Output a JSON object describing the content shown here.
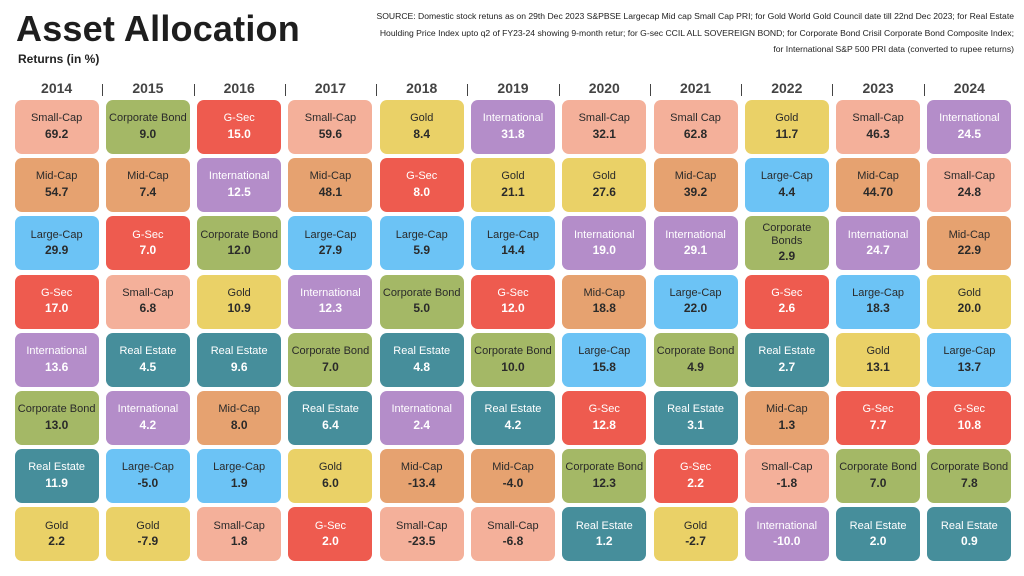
{
  "title": "Asset Allocation",
  "subtitle": "Returns (in %)",
  "source": "SOURCE: Domestic stock retuns as on 29th Dec 2023 S&PBSE Largecap Mid cap Small Cap PRI; for Gold World Gold Council date till 22nd Dec 2023; for Real Estate Houlding Price Index upto q2 of FY23-24 showing 9-month retur; for G-sec CCIL ALL SOVEREIGN BOND; for Corporate Bond Crisil Corporate Bond Composite Index; for International S&P 500 PRI data (converted to rupee returns)",
  "colors": {
    "Small-Cap": "#f4b09a",
    "Mid-Cap": "#e6a270",
    "Large-Cap": "#6cc3f5",
    "G-Sec": "#ee5b4f",
    "Gold": "#ead167",
    "International": "#b48dc9",
    "Corporate Bond": "#a4b866",
    "Real Estate": "#468e9b"
  },
  "chart_data": {
    "type": "table",
    "title": "Asset Allocation",
    "subtitle": "Returns (in %)",
    "columns": [
      {
        "year": "2014",
        "cells": [
          {
            "asset": "Small-Cap",
            "label": "Small-Cap",
            "value": "69.2"
          },
          {
            "asset": "Mid-Cap",
            "label": "Mid-Cap",
            "value": "54.7"
          },
          {
            "asset": "Large-Cap",
            "label": "Large-Cap",
            "value": "29.9"
          },
          {
            "asset": "G-Sec",
            "label": "G-Sec",
            "value": "17.0"
          },
          {
            "asset": "International",
            "label": "International",
            "value": "13.6"
          },
          {
            "asset": "Corporate Bond",
            "label": "Corporate Bond",
            "value": "13.0"
          },
          {
            "asset": "Real Estate",
            "label": "Real Estate",
            "value": "11.9"
          },
          {
            "asset": "Gold",
            "label": "Gold",
            "value": "2.2"
          }
        ]
      },
      {
        "year": "2015",
        "cells": [
          {
            "asset": "Corporate Bond",
            "label": "Corporate Bond",
            "value": "9.0"
          },
          {
            "asset": "Mid-Cap",
            "label": "Mid-Cap",
            "value": "7.4"
          },
          {
            "asset": "G-Sec",
            "label": "G-Sec",
            "value": "7.0"
          },
          {
            "asset": "Small-Cap",
            "label": "Small-Cap",
            "value": "6.8"
          },
          {
            "asset": "Real Estate",
            "label": "Real Estate",
            "value": "4.5"
          },
          {
            "asset": "International",
            "label": "International",
            "value": "4.2"
          },
          {
            "asset": "Large-Cap",
            "label": "Large-Cap",
            "value": "-5.0"
          },
          {
            "asset": "Gold",
            "label": "Gold",
            "value": "-7.9"
          }
        ]
      },
      {
        "year": "2016",
        "cells": [
          {
            "asset": "G-Sec",
            "label": "G-Sec",
            "value": "15.0"
          },
          {
            "asset": "International",
            "label": "International",
            "value": "12.5"
          },
          {
            "asset": "Corporate Bond",
            "label": "Corporate Bond",
            "value": "12.0"
          },
          {
            "asset": "Gold",
            "label": "Gold",
            "value": "10.9"
          },
          {
            "asset": "Real Estate",
            "label": "Real Estate",
            "value": "9.6"
          },
          {
            "asset": "Mid-Cap",
            "label": "Mid-Cap",
            "value": "8.0"
          },
          {
            "asset": "Large-Cap",
            "label": "Large-Cap",
            "value": "1.9"
          },
          {
            "asset": "Small-Cap",
            "label": "Small-Cap",
            "value": "1.8"
          }
        ]
      },
      {
        "year": "2017",
        "cells": [
          {
            "asset": "Small-Cap",
            "label": "Small-Cap",
            "value": "59.6"
          },
          {
            "asset": "Mid-Cap",
            "label": "Mid-Cap",
            "value": "48.1"
          },
          {
            "asset": "Large-Cap",
            "label": "Large-Cap",
            "value": "27.9"
          },
          {
            "asset": "International",
            "label": "International",
            "value": "12.3"
          },
          {
            "asset": "Corporate Bond",
            "label": "Corporate Bond",
            "value": "7.0"
          },
          {
            "asset": "Real Estate",
            "label": "Real Estate",
            "value": "6.4"
          },
          {
            "asset": "Gold",
            "label": "Gold",
            "value": "6.0"
          },
          {
            "asset": "G-Sec",
            "label": "G-Sec",
            "value": "2.0"
          }
        ]
      },
      {
        "year": "2018",
        "cells": [
          {
            "asset": "Gold",
            "label": "Gold",
            "value": "8.4"
          },
          {
            "asset": "G-Sec",
            "label": "G-Sec",
            "value": "8.0"
          },
          {
            "asset": "Large-Cap",
            "label": "Large-Cap",
            "value": "5.9"
          },
          {
            "asset": "Corporate Bond",
            "label": "Corporate Bond",
            "value": "5.0"
          },
          {
            "asset": "Real Estate",
            "label": "Real Estate",
            "value": "4.8"
          },
          {
            "asset": "International",
            "label": "International",
            "value": "2.4"
          },
          {
            "asset": "Mid-Cap",
            "label": "Mid-Cap",
            "value": "-13.4"
          },
          {
            "asset": "Small-Cap",
            "label": "Small-Cap",
            "value": "-23.5"
          }
        ]
      },
      {
        "year": "2019",
        "cells": [
          {
            "asset": "International",
            "label": "International",
            "value": "31.8"
          },
          {
            "asset": "Gold",
            "label": "Gold",
            "value": "21.1"
          },
          {
            "asset": "Large-Cap",
            "label": "Large-Cap",
            "value": "14.4"
          },
          {
            "asset": "G-Sec",
            "label": "G-Sec",
            "value": "12.0"
          },
          {
            "asset": "Corporate Bond",
            "label": "Corporate Bond",
            "value": "10.0"
          },
          {
            "asset": "Real Estate",
            "label": "Real Estate",
            "value": "4.2"
          },
          {
            "asset": "Mid-Cap",
            "label": "Mid-Cap",
            "value": "-4.0"
          },
          {
            "asset": "Small-Cap",
            "label": "Small-Cap",
            "value": "-6.8"
          }
        ]
      },
      {
        "year": "2020",
        "cells": [
          {
            "asset": "Small-Cap",
            "label": "Small-Cap",
            "value": "32.1"
          },
          {
            "asset": "Gold",
            "label": "Gold",
            "value": "27.6"
          },
          {
            "asset": "International",
            "label": "International",
            "value": "19.0"
          },
          {
            "asset": "Mid-Cap",
            "label": "Mid-Cap",
            "value": "18.8"
          },
          {
            "asset": "Large-Cap",
            "label": "Large-Cap",
            "value": "15.8"
          },
          {
            "asset": "G-Sec",
            "label": "G-Sec",
            "value": "12.8"
          },
          {
            "asset": "Corporate Bond",
            "label": "Corporate Bond",
            "value": "12.3"
          },
          {
            "asset": "Real Estate",
            "label": "Real Estate",
            "value": "1.2"
          }
        ]
      },
      {
        "year": "2021",
        "cells": [
          {
            "asset": "Small-Cap",
            "label": "Small Cap",
            "value": "62.8"
          },
          {
            "asset": "Mid-Cap",
            "label": "Mid-Cap",
            "value": "39.2"
          },
          {
            "asset": "International",
            "label": "International",
            "value": "29.1"
          },
          {
            "asset": "Large-Cap",
            "label": "Large-Cap",
            "value": "22.0"
          },
          {
            "asset": "Corporate Bond",
            "label": "Corporate Bond",
            "value": "4.9"
          },
          {
            "asset": "Real Estate",
            "label": "Real Estate",
            "value": "3.1"
          },
          {
            "asset": "G-Sec",
            "label": "G-Sec",
            "value": "2.2"
          },
          {
            "asset": "Gold",
            "label": "Gold",
            "value": "-2.7"
          }
        ]
      },
      {
        "year": "2022",
        "cells": [
          {
            "asset": "Gold",
            "label": "Gold",
            "value": "11.7"
          },
          {
            "asset": "Large-Cap",
            "label": "Large-Cap",
            "value": "4.4"
          },
          {
            "asset": "Corporate Bond",
            "label": "Corporate Bonds",
            "value": "2.9"
          },
          {
            "asset": "G-Sec",
            "label": "G-Sec",
            "value": "2.6"
          },
          {
            "asset": "Real Estate",
            "label": "Real Estate",
            "value": "2.7"
          },
          {
            "asset": "Mid-Cap",
            "label": "Mid-Cap",
            "value": "1.3"
          },
          {
            "asset": "Small-Cap",
            "label": "Small-Cap",
            "value": "-1.8"
          },
          {
            "asset": "International",
            "label": "International",
            "value": "-10.0"
          }
        ]
      },
      {
        "year": "2023",
        "cells": [
          {
            "asset": "Small-Cap",
            "label": "Small-Cap",
            "value": "46.3"
          },
          {
            "asset": "Mid-Cap",
            "label": "Mid-Cap",
            "value": "44.70"
          },
          {
            "asset": "International",
            "label": "International",
            "value": "24.7"
          },
          {
            "asset": "Large-Cap",
            "label": "Large-Cap",
            "value": "18.3"
          },
          {
            "asset": "Gold",
            "label": "Gold",
            "value": "13.1"
          },
          {
            "asset": "G-Sec",
            "label": "G-Sec",
            "value": "7.7"
          },
          {
            "asset": "Corporate Bond",
            "label": "Corporate Bond",
            "value": "7.0"
          },
          {
            "asset": "Real Estate",
            "label": "Real Estate",
            "value": "2.0"
          }
        ]
      },
      {
        "year": "2024",
        "cells": [
          {
            "asset": "International",
            "label": "International",
            "value": "24.5"
          },
          {
            "asset": "Small-Cap",
            "label": "Small-Cap",
            "value": "24.8"
          },
          {
            "asset": "Mid-Cap",
            "label": "Mid-Cap",
            "value": "22.9"
          },
          {
            "asset": "Gold",
            "label": "Gold",
            "value": "20.0"
          },
          {
            "asset": "Large-Cap",
            "label": "Large-Cap",
            "value": "13.7"
          },
          {
            "asset": "G-Sec",
            "label": "G-Sec",
            "value": "10.8"
          },
          {
            "asset": "Corporate Bond",
            "label": "Corporate Bond",
            "value": "7.8"
          },
          {
            "asset": "Real Estate",
            "label": "Real Estate",
            "value": "0.9"
          }
        ]
      }
    ]
  }
}
